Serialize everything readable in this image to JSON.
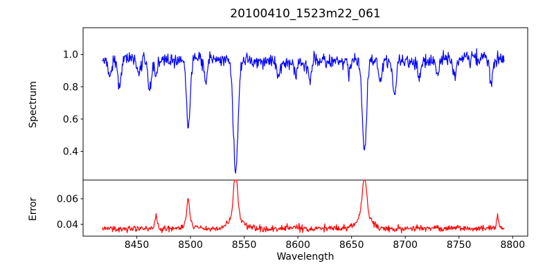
{
  "chart_data": {
    "type": "line",
    "title": "20100410_1523m22_061",
    "xlabel": "Wavelength",
    "axis_color": "#000000",
    "background_color": "#ffffff",
    "seed": 20100410,
    "xlim": [
      8400,
      8814
    ],
    "x_ticks": [
      8450,
      8500,
      8550,
      8600,
      8650,
      8700,
      8750,
      8800
    ],
    "x_range": [
      8418,
      8792
    ],
    "x_step": 0.5,
    "legend": "none",
    "grid": false,
    "subplots": [
      {
        "name": "spectrum",
        "ylabel": "Spectrum",
        "color": "#0000ff",
        "ylim": [
          0.222,
          1.166
        ],
        "y_ticks": [
          0.4,
          0.6,
          0.8,
          1.0
        ],
        "tick_decimals": 1,
        "baseline": 0.962,
        "noise_sigma": 0.021,
        "absorption_lines": [
          {
            "center": 8425,
            "min": 0.85,
            "sigma": 1.5
          },
          {
            "center": 8434,
            "min": 0.78,
            "sigma": 1.4
          },
          {
            "center": 8452,
            "min": 0.87,
            "sigma": 1.4
          },
          {
            "center": 8462,
            "min": 0.76,
            "sigma": 1.4
          },
          {
            "center": 8468,
            "min": 0.86,
            "sigma": 1.3
          },
          {
            "center": 8498,
            "min": 0.53,
            "sigma": 1.7
          },
          {
            "center": 8514,
            "min": 0.82,
            "sigma": 1.5
          },
          {
            "center": 8542,
            "min": 0.27,
            "sigma": 2.2
          },
          {
            "center": 8582,
            "min": 0.86,
            "sigma": 1.4
          },
          {
            "center": 8598,
            "min": 0.87,
            "sigma": 1.3
          },
          {
            "center": 8611,
            "min": 0.85,
            "sigma": 1.4
          },
          {
            "center": 8648,
            "min": 0.88,
            "sigma": 1.3
          },
          {
            "center": 8662,
            "min": 0.4,
            "sigma": 1.9
          },
          {
            "center": 8677,
            "min": 0.84,
            "sigma": 1.3
          },
          {
            "center": 8690,
            "min": 0.76,
            "sigma": 1.5
          },
          {
            "center": 8713,
            "min": 0.85,
            "sigma": 1.4
          },
          {
            "center": 8730,
            "min": 0.86,
            "sigma": 1.3
          },
          {
            "center": 8746,
            "min": 0.84,
            "sigma": 1.4
          },
          {
            "center": 8780,
            "min": 0.82,
            "sigma": 1.5
          }
        ]
      },
      {
        "name": "error",
        "ylabel": "Error",
        "color": "#ff0000",
        "ylim": [
          0.0308,
          0.0746
        ],
        "y_ticks": [
          0.04,
          0.06
        ],
        "tick_decimals": 2,
        "baseline": 0.0368,
        "noise_sigma": 0.0012,
        "peaks": [
          {
            "center": 8468,
            "max": 0.046,
            "sigma": 1.2
          },
          {
            "center": 8498,
            "max": 0.0555,
            "sigma": 1.3
          },
          {
            "center": 8498,
            "max": 0.042,
            "sigma": 4.0
          },
          {
            "center": 8542,
            "max": 0.0725,
            "sigma": 1.7
          },
          {
            "center": 8542,
            "max": 0.047,
            "sigma": 6.0
          },
          {
            "center": 8662,
            "max": 0.066,
            "sigma": 1.9
          },
          {
            "center": 8662,
            "max": 0.049,
            "sigma": 6.0
          },
          {
            "center": 8786,
            "max": 0.0465,
            "sigma": 1.0
          }
        ]
      }
    ]
  }
}
